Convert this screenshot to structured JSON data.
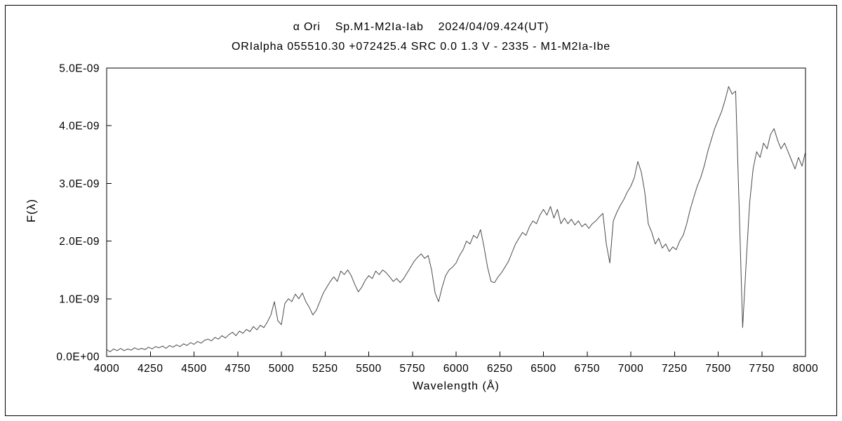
{
  "titles": {
    "line1": "α Ori    Sp.M1-M2Ia-Iab    2024/04/09.424(UT)",
    "line2": "ORIalpha 055510.30 +072425.4 SRC 0.0 1.3 V - 2335 - M1-M2Ia-Ibe"
  },
  "chart_data": {
    "type": "line",
    "title": "α Ori    Sp.M1-M2Ia-Iab    2024/04/09.424(UT)",
    "subtitle": "ORIalpha 055510.30 +072425.4 SRC 0.0 1.3 V - 2335 - M1-M2Ia-Ibe",
    "xlabel": "Wavelength (Å)",
    "ylabel": "F(λ)",
    "xlim": [
      4000,
      8000
    ],
    "ylim": [
      0,
      5
    ],
    "y_unit": "1E-09",
    "grid": false,
    "legend": "none",
    "line_color": "#4a4a4a",
    "x_ticks": [
      4000,
      4250,
      4500,
      4750,
      5000,
      5250,
      5500,
      5750,
      6000,
      6250,
      6500,
      6750,
      7000,
      7250,
      7500,
      7750,
      8000
    ],
    "x_tick_labels": [
      "4000",
      "4250",
      "4500",
      "4750",
      "5000",
      "5250",
      "5500",
      "5750",
      "6000",
      "6250",
      "6500",
      "6750",
      "7000",
      "7250",
      "7500",
      "7750",
      "8000"
    ],
    "y_ticks": [
      0,
      1,
      2,
      3,
      4,
      5
    ],
    "y_tick_labels": [
      "0.0E+00",
      "1.0E-09",
      "2.0E-09",
      "3.0E-09",
      "4.0E-09",
      "5.0E-09"
    ],
    "x_start": 4000,
    "x_step": 20,
    "flux_scale_note": "flux values in units of 1E-09",
    "flux": [
      0.12,
      0.08,
      0.13,
      0.1,
      0.14,
      0.1,
      0.13,
      0.11,
      0.15,
      0.12,
      0.14,
      0.12,
      0.16,
      0.13,
      0.17,
      0.15,
      0.18,
      0.14,
      0.19,
      0.16,
      0.2,
      0.17,
      0.22,
      0.19,
      0.24,
      0.21,
      0.26,
      0.23,
      0.28,
      0.3,
      0.27,
      0.33,
      0.3,
      0.36,
      0.32,
      0.38,
      0.42,
      0.36,
      0.44,
      0.4,
      0.47,
      0.43,
      0.52,
      0.46,
      0.54,
      0.5,
      0.6,
      0.72,
      0.95,
      0.62,
      0.55,
      0.92,
      1.0,
      0.95,
      1.08,
      1.0,
      1.1,
      0.95,
      0.85,
      0.72,
      0.8,
      0.95,
      1.1,
      1.2,
      1.3,
      1.38,
      1.3,
      1.48,
      1.42,
      1.5,
      1.4,
      1.25,
      1.12,
      1.2,
      1.32,
      1.4,
      1.35,
      1.48,
      1.42,
      1.5,
      1.45,
      1.38,
      1.3,
      1.35,
      1.28,
      1.35,
      1.45,
      1.55,
      1.65,
      1.72,
      1.78,
      1.7,
      1.75,
      1.5,
      1.1,
      0.95,
      1.2,
      1.4,
      1.5,
      1.55,
      1.62,
      1.75,
      1.85,
      2.0,
      1.95,
      2.1,
      2.05,
      2.2,
      1.9,
      1.55,
      1.3,
      1.28,
      1.38,
      1.45,
      1.55,
      1.65,
      1.8,
      1.95,
      2.05,
      2.15,
      2.1,
      2.25,
      2.35,
      2.3,
      2.45,
      2.55,
      2.45,
      2.6,
      2.4,
      2.55,
      2.3,
      2.4,
      2.3,
      2.38,
      2.28,
      2.35,
      2.25,
      2.3,
      2.22,
      2.3,
      2.35,
      2.42,
      2.48,
      1.95,
      1.62,
      2.35,
      2.5,
      2.62,
      2.72,
      2.85,
      2.95,
      3.1,
      3.38,
      3.2,
      2.85,
      2.3,
      2.15,
      1.95,
      2.05,
      1.88,
      1.95,
      1.82,
      1.9,
      1.85,
      2.0,
      2.1,
      2.3,
      2.55,
      2.75,
      2.95,
      3.1,
      3.3,
      3.55,
      3.75,
      3.95,
      4.1,
      4.25,
      4.45,
      4.68,
      4.55,
      4.6,
      2.6,
      0.5,
      1.6,
      2.65,
      3.25,
      3.55,
      3.45,
      3.7,
      3.6,
      3.85,
      3.95,
      3.75,
      3.6,
      3.7,
      3.55,
      3.4,
      3.25,
      3.45,
      3.3,
      3.55
    ]
  }
}
